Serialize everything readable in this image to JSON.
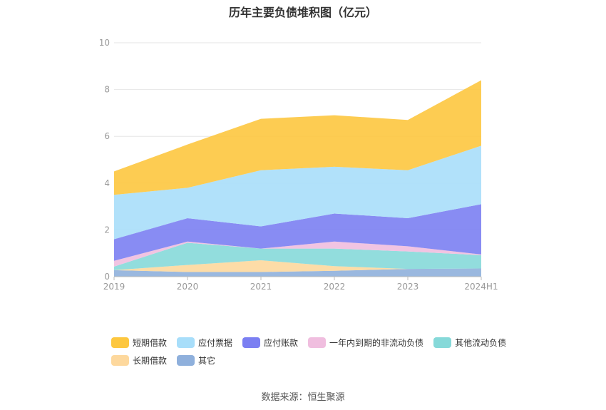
{
  "chart_data": {
    "type": "area",
    "title": "历年主要负债堆积图（亿元）",
    "categories": [
      "2019",
      "2020",
      "2021",
      "2022",
      "2023",
      "2024H1"
    ],
    "ylim": [
      0,
      10
    ],
    "yticks": [
      "0",
      "2",
      "4",
      "6",
      "8",
      "10"
    ],
    "grid": true,
    "legend_position": "bottom",
    "stacked": true,
    "series": [
      {
        "name": "其它",
        "color": "#8fb0dc",
        "values": [
          0.28,
          0.2,
          0.2,
          0.25,
          0.33,
          0.35
        ]
      },
      {
        "name": "长期借款",
        "color": "#fdd89d",
        "values": [
          0.0,
          0.3,
          0.5,
          0.2,
          0.0,
          0.0
        ]
      },
      {
        "name": "其他流动负债",
        "color": "#86d9d9",
        "values": [
          0.15,
          0.95,
          0.5,
          0.75,
          0.75,
          0.57
        ]
      },
      {
        "name": "一年内到期的非流动负债",
        "color": "#f0bedf",
        "values": [
          0.25,
          0.05,
          0.0,
          0.3,
          0.22,
          0.03
        ]
      },
      {
        "name": "应付账款",
        "color": "#7b7ff2",
        "values": [
          0.92,
          1.0,
          0.95,
          1.2,
          1.2,
          2.15
        ]
      },
      {
        "name": "应付票据",
        "color": "#a8defa",
        "values": [
          1.9,
          1.3,
          2.4,
          2.0,
          2.05,
          2.5
        ]
      },
      {
        "name": "短期借款",
        "color": "#fdc73f",
        "values": [
          1.0,
          1.85,
          2.2,
          2.2,
          2.15,
          2.8
        ]
      }
    ]
  },
  "legend": [
    {
      "label": "短期借款",
      "color": "#fdc73f"
    },
    {
      "label": "应付票据",
      "color": "#a8defa"
    },
    {
      "label": "应付账款",
      "color": "#7b7ff2"
    },
    {
      "label": "一年内到期的非流动负债",
      "color": "#f0bedf"
    },
    {
      "label": "其他流动负债",
      "color": "#86d9d9"
    },
    {
      "label": "长期借款",
      "color": "#fdd89d"
    },
    {
      "label": "其它",
      "color": "#8fb0dc"
    }
  ],
  "source": "数据来源：恒生聚源"
}
